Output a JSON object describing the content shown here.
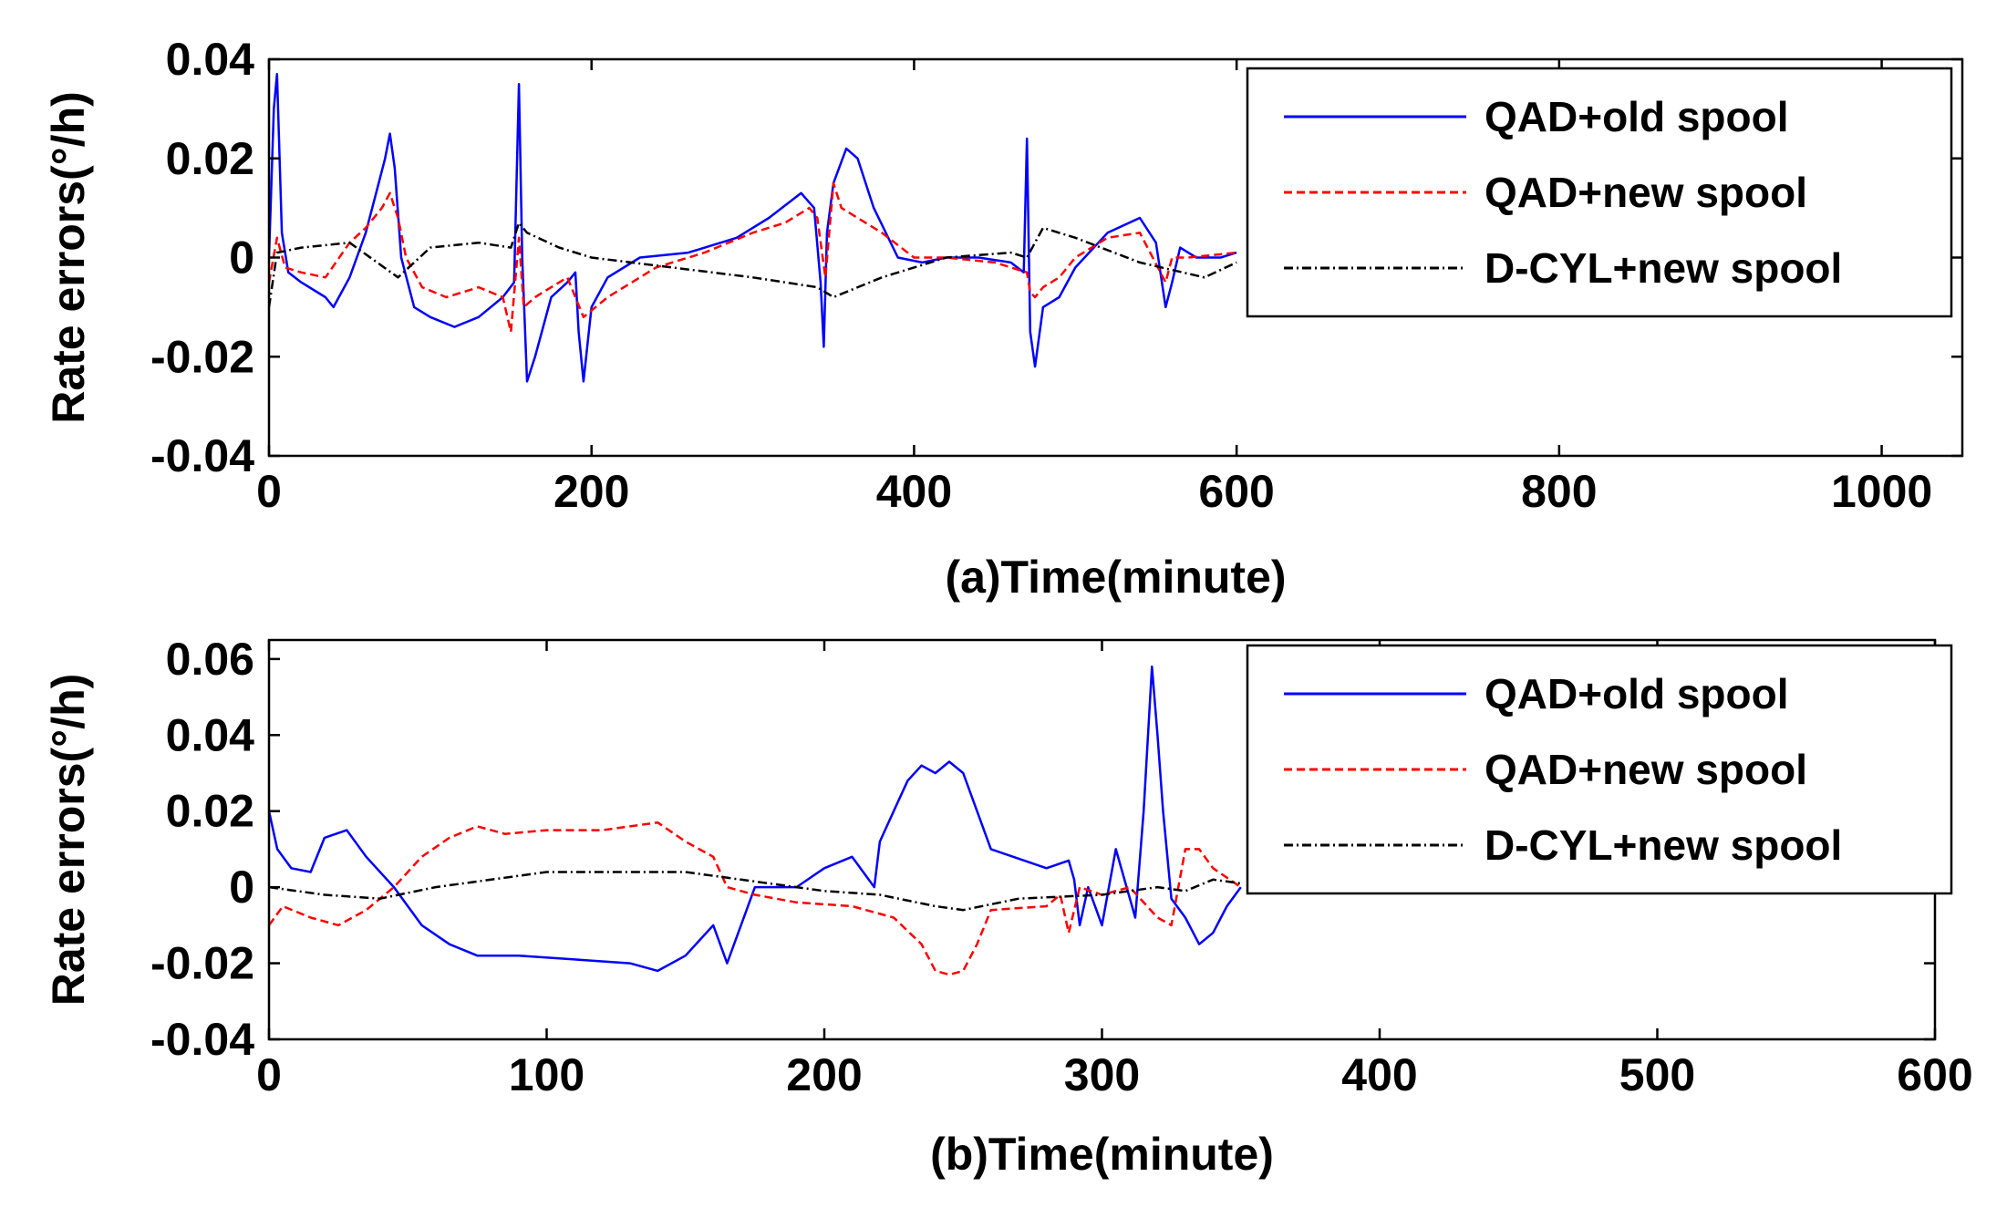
{
  "chart_data": [
    {
      "type": "line",
      "id": "a",
      "xlabel": "(a)Time(minute)",
      "ylabel": "Rate errors(°/h)",
      "xlim": [
        0,
        1050
      ],
      "ylim": [
        -0.04,
        0.04
      ],
      "xticks": [
        0,
        200,
        400,
        600,
        800,
        1000
      ],
      "xtick_labels": [
        "0",
        "200",
        "400",
        "600",
        "800",
        "1000"
      ],
      "yticks": [
        -0.04,
        -0.02,
        0,
        0.02,
        0.04
      ],
      "ytick_labels": [
        "-0.04",
        "-0.02",
        "0",
        "0.02",
        "0.04"
      ],
      "legend_position": "top-right",
      "series": [
        {
          "name": "QAD+old spool",
          "color": "#0000ff",
          "style": "solid",
          "x": [
            0,
            3,
            5,
            8,
            12,
            20,
            35,
            40,
            50,
            60,
            68,
            72,
            75,
            78,
            82,
            86,
            90,
            100,
            115,
            130,
            145,
            152,
            155,
            157,
            160,
            165,
            175,
            185,
            190,
            192,
            195,
            200,
            210,
            230,
            260,
            290,
            310,
            330,
            338,
            342,
            344,
            346,
            350,
            358,
            365,
            375,
            390,
            405,
            420,
            440,
            460,
            468,
            470,
            472,
            475,
            480,
            490,
            500,
            520,
            540,
            550,
            556,
            560,
            565,
            575,
            590,
            600
          ],
          "y": [
            0.0,
            0.03,
            0.037,
            0.005,
            -0.003,
            -0.005,
            -0.008,
            -0.01,
            -0.004,
            0.005,
            0.015,
            0.02,
            0.025,
            0.018,
            0.0,
            -0.005,
            -0.01,
            -0.012,
            -0.014,
            -0.012,
            -0.008,
            -0.005,
            0.035,
            0.0,
            -0.025,
            -0.02,
            -0.008,
            -0.005,
            -0.003,
            -0.015,
            -0.025,
            -0.01,
            -0.004,
            0.0,
            0.001,
            0.004,
            0.008,
            0.013,
            0.01,
            -0.005,
            -0.018,
            0.005,
            0.015,
            0.022,
            0.02,
            0.01,
            0.0,
            -0.001,
            0.0,
            0.0,
            -0.001,
            -0.003,
            0.024,
            -0.015,
            -0.022,
            -0.01,
            -0.008,
            -0.002,
            0.005,
            0.008,
            0.003,
            -0.01,
            -0.005,
            0.002,
            0.0,
            0.0,
            0.001
          ]
        },
        {
          "name": "QAD+new spool",
          "color": "#ff0000",
          "style": "dashed",
          "x": [
            0,
            5,
            10,
            20,
            35,
            50,
            60,
            70,
            75,
            80,
            85,
            95,
            110,
            130,
            145,
            150,
            155,
            158,
            165,
            175,
            185,
            195,
            210,
            240,
            270,
            300,
            320,
            335,
            340,
            345,
            350,
            355,
            365,
            380,
            400,
            420,
            450,
            470,
            472,
            475,
            480,
            490,
            500,
            520,
            540,
            556,
            560,
            570,
            600
          ],
          "y": [
            -0.005,
            0.004,
            -0.002,
            -0.003,
            -0.004,
            0.003,
            0.006,
            0.01,
            0.013,
            0.008,
            0.0,
            -0.006,
            -0.008,
            -0.006,
            -0.008,
            -0.015,
            0.004,
            -0.01,
            -0.008,
            -0.006,
            -0.004,
            -0.012,
            -0.008,
            -0.002,
            0.001,
            0.005,
            0.007,
            0.01,
            0.008,
            -0.004,
            0.015,
            0.01,
            0.008,
            0.005,
            0.0,
            0.0,
            -0.001,
            -0.003,
            -0.007,
            -0.008,
            -0.006,
            -0.004,
            0.0,
            0.004,
            0.005,
            -0.005,
            0.0,
            0.0,
            0.001
          ]
        },
        {
          "name": "D-CYL+new spool",
          "color": "#000000",
          "style": "dashdot",
          "x": [
            0,
            5,
            20,
            50,
            80,
            100,
            130,
            150,
            155,
            160,
            180,
            200,
            250,
            300,
            340,
            350,
            380,
            420,
            460,
            470,
            480,
            500,
            540,
            580,
            600
          ],
          "y": [
            -0.01,
            0.001,
            0.002,
            0.003,
            -0.004,
            0.002,
            0.003,
            0.002,
            0.007,
            0.005,
            0.002,
            0.0,
            -0.002,
            -0.004,
            -0.006,
            -0.008,
            -0.004,
            0.0,
            0.001,
            0.0,
            0.006,
            0.004,
            -0.001,
            -0.004,
            -0.001
          ]
        }
      ]
    },
    {
      "type": "line",
      "id": "b",
      "xlabel": "(b)Time(minute)",
      "ylabel": "Rate errors(°/h)",
      "xlim": [
        0,
        600
      ],
      "ylim": [
        -0.04,
        0.065
      ],
      "xticks": [
        0,
        100,
        200,
        300,
        400,
        500,
        600
      ],
      "xtick_labels": [
        "0",
        "100",
        "200",
        "300",
        "400",
        "500",
        "600"
      ],
      "yticks": [
        -0.04,
        -0.02,
        0,
        0.02,
        0.04,
        0.06
      ],
      "ytick_labels": [
        "-0.04",
        "-0.02",
        "0",
        "0.02",
        "0.04",
        "0.06"
      ],
      "legend_position": "top-right",
      "series": [
        {
          "name": "QAD+old spool",
          "color": "#0000ff",
          "style": "solid",
          "x": [
            0,
            3,
            8,
            15,
            20,
            28,
            35,
            45,
            55,
            65,
            75,
            90,
            110,
            130,
            140,
            150,
            160,
            165,
            175,
            190,
            200,
            210,
            218,
            220,
            225,
            230,
            235,
            240,
            245,
            250,
            255,
            260,
            280,
            288,
            290,
            292,
            295,
            300,
            305,
            312,
            315,
            318,
            320,
            322,
            325,
            330,
            335,
            340,
            345,
            350
          ],
          "y": [
            0.02,
            0.01,
            0.005,
            0.004,
            0.013,
            0.015,
            0.008,
            0.0,
            -0.01,
            -0.015,
            -0.018,
            -0.018,
            -0.019,
            -0.02,
            -0.022,
            -0.018,
            -0.01,
            -0.02,
            0.0,
            0.0,
            0.005,
            0.008,
            0.0,
            0.012,
            0.02,
            0.028,
            0.032,
            0.03,
            0.033,
            0.03,
            0.02,
            0.01,
            0.005,
            0.007,
            0.002,
            -0.01,
            0.0,
            -0.01,
            0.01,
            -0.008,
            0.02,
            0.058,
            0.04,
            0.02,
            -0.003,
            -0.008,
            -0.015,
            -0.012,
            -0.005,
            0.0
          ]
        },
        {
          "name": "QAD+new spool",
          "color": "#ff0000",
          "style": "dashed",
          "x": [
            0,
            5,
            15,
            25,
            35,
            45,
            55,
            65,
            75,
            85,
            100,
            120,
            140,
            150,
            160,
            165,
            175,
            190,
            210,
            225,
            235,
            240,
            245,
            250,
            255,
            260,
            280,
            285,
            288,
            292,
            300,
            310,
            320,
            325,
            330,
            335,
            340,
            350
          ],
          "y": [
            -0.01,
            -0.005,
            -0.008,
            -0.01,
            -0.006,
            0.0,
            0.008,
            0.013,
            0.016,
            0.014,
            0.015,
            0.015,
            0.017,
            0.012,
            0.008,
            0.0,
            -0.002,
            -0.004,
            -0.005,
            -0.008,
            -0.015,
            -0.022,
            -0.023,
            -0.022,
            -0.015,
            -0.006,
            -0.005,
            -0.002,
            -0.012,
            0.0,
            -0.002,
            0.0,
            -0.008,
            -0.01,
            0.01,
            0.01,
            0.005,
            0.0
          ]
        },
        {
          "name": "D-CYL+new spool",
          "color": "#000000",
          "style": "dashdot",
          "x": [
            0,
            10,
            20,
            40,
            60,
            80,
            100,
            130,
            150,
            170,
            200,
            220,
            240,
            250,
            270,
            300,
            320,
            330,
            340,
            350
          ],
          "y": [
            0.0,
            -0.001,
            -0.002,
            -0.003,
            0.0,
            0.002,
            0.004,
            0.004,
            0.004,
            0.002,
            -0.001,
            -0.002,
            -0.005,
            -0.006,
            -0.003,
            -0.002,
            0.0,
            -0.001,
            0.002,
            0.001
          ]
        }
      ]
    }
  ]
}
